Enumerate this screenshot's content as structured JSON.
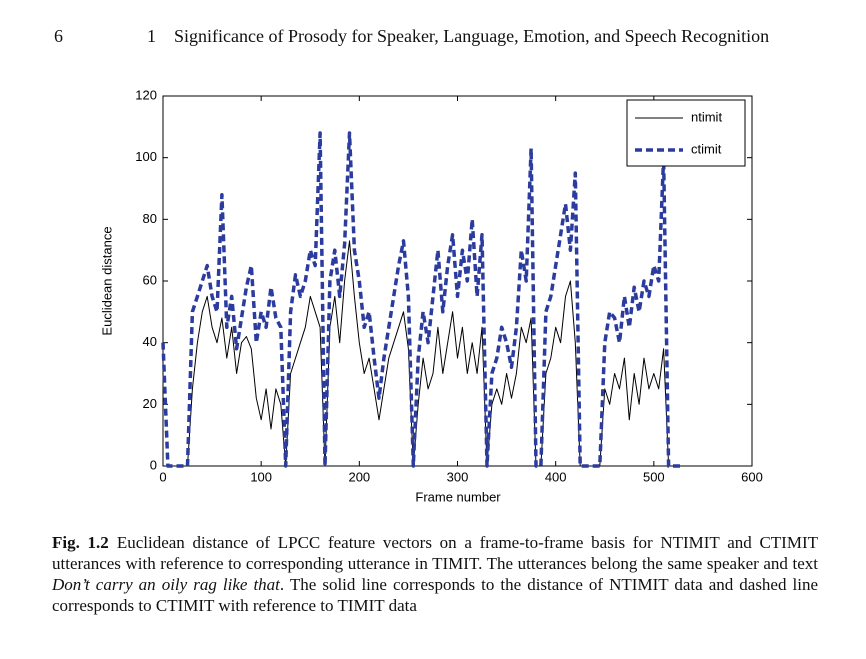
{
  "header": {
    "page_number": "6",
    "chapter_number": "1",
    "running_title": "Significance of Prosody for Speaker, Language, Emotion, and Speech Recognition"
  },
  "chart_data": {
    "type": "line",
    "x_label": "Frame number",
    "y_label": "Euclidean distance",
    "xlim": [
      0,
      600
    ],
    "xticks": [
      0,
      100,
      200,
      300,
      400,
      500,
      600
    ],
    "ylim": [
      0,
      120
    ],
    "yticks": [
      0,
      20,
      40,
      60,
      80,
      100,
      120
    ],
    "legend": "upper right",
    "grid": false,
    "x": [
      0,
      5,
      10,
      15,
      20,
      25,
      30,
      35,
      40,
      45,
      50,
      55,
      60,
      65,
      70,
      75,
      80,
      85,
      90,
      95,
      100,
      105,
      110,
      115,
      120,
      125,
      130,
      135,
      140,
      145,
      150,
      155,
      160,
      165,
      170,
      175,
      180,
      185,
      190,
      195,
      200,
      205,
      210,
      215,
      220,
      225,
      230,
      235,
      240,
      245,
      250,
      255,
      260,
      265,
      270,
      275,
      280,
      285,
      290,
      295,
      300,
      305,
      310,
      315,
      320,
      325,
      330,
      335,
      340,
      345,
      350,
      355,
      360,
      365,
      370,
      375,
      380,
      385,
      390,
      395,
      400,
      405,
      410,
      415,
      420,
      425,
      430,
      435,
      440,
      445,
      450,
      455,
      460,
      465,
      470,
      475,
      480,
      485,
      490,
      495,
      500,
      505,
      510,
      515,
      520,
      525,
      530
    ],
    "series": [
      {
        "name": "ntimit",
        "color": "#000000",
        "line_style": "solid",
        "values": [
          0,
          0,
          0,
          0,
          0,
          0,
          25,
          40,
          50,
          55,
          45,
          40,
          48,
          35,
          45,
          30,
          40,
          42,
          38,
          22,
          15,
          25,
          12,
          25,
          20,
          0,
          30,
          35,
          40,
          45,
          55,
          50,
          45,
          0,
          45,
          55,
          40,
          60,
          73,
          55,
          40,
          30,
          35,
          25,
          15,
          25,
          35,
          40,
          45,
          50,
          38,
          0,
          20,
          35,
          25,
          30,
          45,
          30,
          40,
          50,
          35,
          45,
          30,
          40,
          30,
          45,
          0,
          20,
          25,
          20,
          30,
          22,
          30,
          45,
          40,
          48,
          0,
          0,
          30,
          35,
          45,
          40,
          55,
          60,
          40,
          0,
          0,
          0,
          0,
          0,
          25,
          20,
          30,
          25,
          35,
          15,
          30,
          20,
          35,
          25,
          30,
          25,
          38,
          0,
          0,
          0,
          0
        ]
      },
      {
        "name": "ctimit",
        "color": "#2b3c9e",
        "line_style": "dashed",
        "values": [
          40,
          0,
          0,
          0,
          0,
          0,
          50,
          55,
          60,
          65,
          55,
          50,
          88,
          45,
          55,
          38,
          48,
          58,
          65,
          40,
          50,
          45,
          58,
          48,
          45,
          0,
          50,
          62,
          55,
          60,
          70,
          65,
          108,
          0,
          60,
          70,
          55,
          72,
          108,
          70,
          60,
          45,
          50,
          35,
          22,
          35,
          45,
          55,
          65,
          73,
          55,
          0,
          35,
          50,
          40,
          55,
          70,
          50,
          65,
          75,
          55,
          70,
          60,
          80,
          55,
          75,
          0,
          30,
          35,
          45,
          40,
          32,
          45,
          70,
          60,
          103,
          0,
          0,
          50,
          55,
          65,
          75,
          85,
          70,
          95,
          0,
          0,
          0,
          0,
          0,
          40,
          50,
          48,
          40,
          55,
          45,
          58,
          50,
          60,
          55,
          65,
          60,
          100,
          0,
          0,
          0,
          0
        ]
      }
    ]
  },
  "caption": {
    "label": "Fig. 1.2",
    "text_before": "Euclidean distance of LPCC feature vectors on a frame-to-frame basis for NTIMIT and CTIMIT utterances with reference to corresponding utterance in TIMIT. The utterances belong the same speaker and text",
    "italic_text": "Don’t carry an oily rag like that",
    "text_after": ". The solid line corresponds to the distance of NTIMIT data and dashed line corresponds to CTIMIT with reference to TIMIT data"
  }
}
